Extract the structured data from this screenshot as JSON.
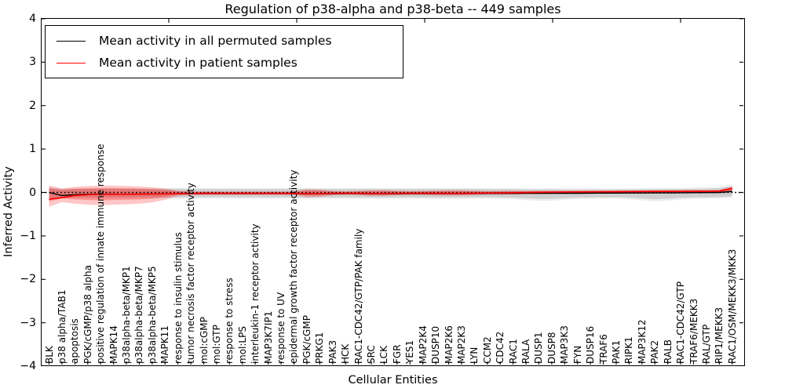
{
  "chart_data": {
    "type": "line",
    "title": "Regulation of p38-alpha and p38-beta -- 449 samples",
    "xlabel": "Cellular Entities",
    "ylabel": "Inferred Activity",
    "ylim": [
      -4,
      4
    ],
    "ytick_labels": [
      "4",
      "3",
      "2",
      "1",
      "0",
      "−1",
      "−2",
      "−3",
      "−4"
    ],
    "grid": false,
    "legend_position": "upper left",
    "zero_line": {
      "style": "dotted",
      "color": "#000000",
      "y": 0
    },
    "legend": [
      {
        "label": "Mean activity in all permuted samples",
        "color": "#000000"
      },
      {
        "label": "Mean activity in patient samples",
        "color": "#ff0000"
      }
    ],
    "categories": [
      "BLK",
      "p38 alpha/TAB1",
      "apoptosis",
      "PGK/cGMP/p38 alpha",
      "positive regulation of innate immune response",
      "MAPK14",
      "p38alpha-beta/MKP1",
      "p38alpha-beta/MKP7",
      "p38alpha-beta/MKP5",
      "MAPK11",
      "response to insulin stimulus",
      "tumor necrosis factor receptor activity",
      "mol:cGMP",
      "mol:GTP",
      "response to stress",
      "mol:LPS",
      "interleukin-1 receptor activity",
      "MAP3K7IP1",
      "response to UV",
      "epidermal growth factor receptor activity",
      "PGK/cGMP",
      "PRKG1",
      "PAK3",
      "HCK",
      "RAC1-CDC42/GTP/PAK family",
      "SRC",
      "LCK",
      "FGR",
      "YES1",
      "MAP2K4",
      "DUSP10",
      "MAP2K6",
      "MAP2K3",
      "LYN",
      "CCM2",
      "CDC42",
      "RAC1",
      "RALA",
      "DUSP1",
      "DUSP8",
      "MAP3K3",
      "FYN",
      "DUSP16",
      "TRAF6",
      "PAK1",
      "RIPK1",
      "MAP3K12",
      "PAK2",
      "RALB",
      "RAC1-CDC42/GTP",
      "TRAF6/MEKK3",
      "RAL/GTP",
      "RIP1/MEKK3",
      "RAC1/OSM/MEKK3/MKK3"
    ],
    "series": [
      {
        "name": "Mean activity in all permuted samples",
        "color": "#000000",
        "band_color": "#828282",
        "values": [
          0.0,
          -0.07,
          -0.05,
          -0.04,
          -0.035,
          -0.04,
          -0.04,
          -0.038,
          -0.035,
          -0.032,
          -0.03,
          -0.028,
          -0.028,
          -0.028,
          -0.028,
          -0.028,
          -0.028,
          -0.028,
          -0.028,
          -0.028,
          -0.032,
          -0.032,
          -0.03,
          -0.028,
          -0.028,
          -0.032,
          -0.032,
          -0.03,
          -0.028,
          -0.028,
          -0.028,
          -0.028,
          -0.028,
          -0.025,
          -0.022,
          -0.022,
          -0.022,
          -0.02,
          -0.02,
          -0.02,
          -0.018,
          -0.018,
          -0.016,
          -0.015,
          -0.014,
          -0.012,
          -0.012,
          -0.01,
          -0.01,
          -0.008,
          -0.005,
          -0.003,
          0.0,
          0.025
        ],
        "band_upper": [
          0.1,
          0.075,
          0.08,
          0.08,
          0.08,
          0.08,
          0.08,
          0.08,
          0.08,
          0.08,
          0.085,
          0.08,
          0.078,
          0.078,
          0.08,
          0.078,
          0.078,
          0.08,
          0.078,
          0.08,
          0.082,
          0.08,
          0.078,
          0.078,
          0.08,
          0.082,
          0.08,
          0.078,
          0.078,
          0.08,
          0.08,
          0.08,
          0.08,
          0.078,
          0.075,
          0.075,
          0.075,
          0.072,
          0.072,
          0.072,
          0.07,
          0.07,
          0.07,
          0.07,
          0.07,
          0.072,
          0.075,
          0.075,
          0.078,
          0.08,
          0.085,
          0.09,
          0.1,
          0.145
        ],
        "band_lower": [
          -0.135,
          -0.105,
          -0.11,
          -0.11,
          -0.11,
          -0.11,
          -0.11,
          -0.11,
          -0.11,
          -0.11,
          -0.115,
          -0.11,
          -0.108,
          -0.108,
          -0.11,
          -0.108,
          -0.108,
          -0.11,
          -0.108,
          -0.11,
          -0.115,
          -0.112,
          -0.11,
          -0.11,
          -0.112,
          -0.115,
          -0.112,
          -0.11,
          -0.11,
          -0.112,
          -0.115,
          -0.115,
          -0.112,
          -0.11,
          -0.11,
          -0.112,
          -0.12,
          -0.135,
          -0.15,
          -0.145,
          -0.13,
          -0.12,
          -0.115,
          -0.112,
          -0.11,
          -0.12,
          -0.14,
          -0.155,
          -0.145,
          -0.125,
          -0.115,
          -0.11,
          -0.105,
          -0.09
        ]
      },
      {
        "name": "Mean activity in patient samples",
        "color": "#ff0000",
        "band_color": "#ff0000",
        "values": [
          -0.155,
          -0.12,
          -0.07,
          -0.05,
          -0.042,
          -0.04,
          -0.04,
          -0.038,
          -0.035,
          -0.032,
          -0.028,
          -0.025,
          -0.022,
          -0.022,
          -0.022,
          -0.022,
          -0.022,
          -0.022,
          -0.022,
          -0.022,
          -0.028,
          -0.028,
          -0.022,
          -0.02,
          -0.02,
          -0.025,
          -0.025,
          -0.022,
          -0.02,
          -0.018,
          -0.02,
          -0.022,
          -0.022,
          -0.018,
          -0.012,
          -0.01,
          -0.008,
          0.0,
          0.005,
          0.008,
          0.01,
          0.012,
          0.014,
          0.016,
          0.018,
          0.02,
          0.022,
          0.025,
          0.025,
          0.028,
          0.03,
          0.03,
          0.032,
          0.095
        ],
        "band_upper": [
          0.16,
          0.09,
          0.13,
          0.15,
          0.16,
          0.16,
          0.15,
          0.14,
          0.12,
          0.09,
          0.04,
          0.025,
          0.02,
          0.02,
          0.02,
          0.02,
          0.02,
          0.02,
          0.02,
          0.025,
          0.075,
          0.065,
          0.035,
          0.025,
          0.035,
          0.055,
          0.055,
          0.04,
          0.03,
          0.035,
          0.045,
          0.05,
          0.05,
          0.04,
          0.03,
          0.035,
          0.04,
          0.035,
          0.04,
          0.04,
          0.04,
          0.045,
          0.04,
          0.04,
          0.045,
          0.045,
          0.045,
          0.05,
          0.05,
          0.05,
          0.055,
          0.055,
          0.06,
          0.135
        ],
        "band_lower": [
          -0.33,
          -0.22,
          -0.26,
          -0.28,
          -0.29,
          -0.28,
          -0.27,
          -0.26,
          -0.23,
          -0.17,
          -0.08,
          -0.06,
          -0.05,
          -0.05,
          -0.05,
          -0.05,
          -0.05,
          -0.05,
          -0.05,
          -0.055,
          -0.11,
          -0.1,
          -0.06,
          -0.05,
          -0.06,
          -0.08,
          -0.08,
          -0.065,
          -0.055,
          -0.055,
          -0.065,
          -0.07,
          -0.07,
          -0.06,
          -0.05,
          -0.05,
          -0.05,
          -0.04,
          -0.035,
          -0.03,
          -0.03,
          -0.028,
          -0.025,
          -0.022,
          -0.02,
          -0.02,
          -0.018,
          -0.015,
          -0.015,
          -0.012,
          -0.01,
          -0.01,
          -0.008,
          0.04
        ]
      }
    ]
  }
}
